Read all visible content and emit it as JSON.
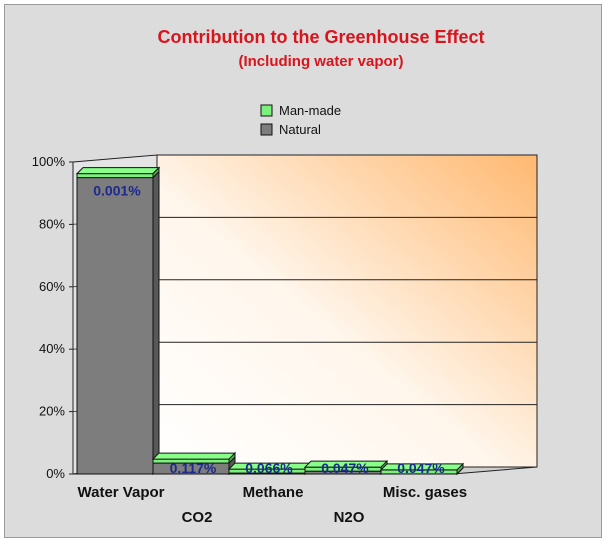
{
  "chart_data": {
    "type": "bar",
    "stacked": true,
    "title": "Contribution to the Greenhouse Effect",
    "subtitle": "(Including water vapor)",
    "categories": [
      "Water Vapor",
      "CO2",
      "Methane",
      "N2O",
      "Misc. gases"
    ],
    "series": [
      {
        "name": "Natural",
        "values": [
          94.999,
          3.502,
          0.294,
          0.903,
          0.025
        ]
      },
      {
        "name": "Man-made",
        "values": [
          0.001,
          0.117,
          0.066,
          0.047,
          0.047
        ]
      }
    ],
    "data_labels": [
      "0.001%",
      "0.117%",
      "0.066%",
      "0.047%",
      "0.047%"
    ],
    "y_ticks": [
      "0%",
      "20%",
      "40%",
      "60%",
      "80%",
      "100%"
    ],
    "ylim": [
      0,
      100
    ],
    "grid": true,
    "legend_position": "top-center",
    "colors": {
      "Natural": "#7d7d7d",
      "Man-made": "#7cf07c",
      "title": "#d8141c",
      "data_label": "#1d2a8c"
    }
  }
}
